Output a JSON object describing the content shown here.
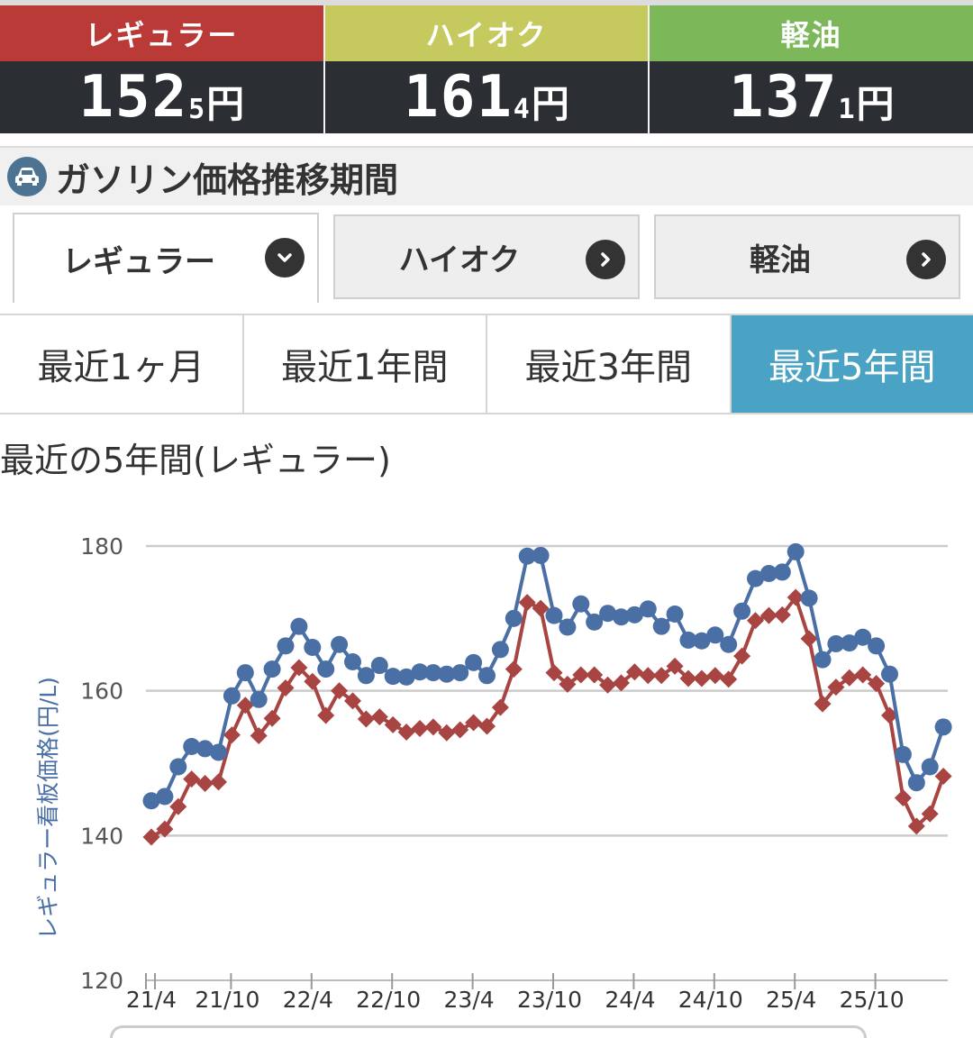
{
  "prices": [
    {
      "label": "レギュラー",
      "int": "152",
      "dec": "5",
      "unit": "円",
      "color": "#b93a37"
    },
    {
      "label": "ハイオク",
      "int": "161",
      "dec": "4",
      "unit": "円",
      "color": "#c6c95e"
    },
    {
      "label": "軽油",
      "int": "137",
      "dec": "1",
      "unit": "円",
      "color": "#7cb85a"
    }
  ],
  "section": {
    "title": "ガソリン価格推移期間",
    "icon": "car-icon"
  },
  "fuel_tabs": [
    {
      "label": "レギュラー",
      "active": true,
      "icon": "chevron-down-icon"
    },
    {
      "label": "ハイオク",
      "active": false,
      "icon": "chevron-right-icon"
    },
    {
      "label": "軽油",
      "active": false,
      "icon": "chevron-right-icon"
    }
  ],
  "period_tabs": [
    {
      "label": "最近1ヶ月",
      "active": false
    },
    {
      "label": "最近1年間",
      "active": false
    },
    {
      "label": "最近3年間",
      "active": false
    },
    {
      "label": "最近5年間",
      "active": true
    }
  ],
  "chart_heading": "最近の5年間(レギュラー)",
  "chart_data": {
    "type": "line",
    "title": "",
    "ylabel": "レギュラー看板価格(円/L)",
    "ylim": [
      120,
      180
    ],
    "yticks": [
      120,
      140,
      160,
      180
    ],
    "grid": true,
    "x_tick_labels": [
      "21/4",
      "21/10",
      "22/4",
      "22/10",
      "23/4",
      "23/10",
      "24/4",
      "24/10",
      "25/4",
      "25/10"
    ],
    "x_tick_month_index": [
      0,
      6,
      12,
      18,
      24,
      30,
      36,
      42,
      48,
      54
    ],
    "series": [
      {
        "color": "#4a6fa5",
        "marker": "circle",
        "values": [
          144.8,
          145.4,
          149.5,
          152.3,
          152.0,
          151.5,
          159.3,
          162.5,
          158.8,
          163.0,
          166.2,
          168.9,
          166.0,
          163.0,
          166.4,
          164.0,
          162.1,
          163.5,
          162.0,
          161.9,
          162.6,
          162.5,
          162.3,
          162.5,
          163.9,
          162.1,
          165.7,
          170.0,
          178.6,
          178.7,
          170.4,
          168.8,
          172.0,
          169.5,
          170.7,
          170.2,
          170.5,
          171.3,
          168.9,
          170.6,
          167.0,
          166.9,
          167.7,
          166.4,
          171.0,
          175.5,
          176.2,
          176.4,
          179.2,
          172.8,
          164.3,
          166.5,
          166.6,
          167.4,
          166.2,
          162.3,
          151.2,
          147.3,
          149.5,
          155.0
        ]
      },
      {
        "color": "#a84442",
        "marker": "diamond",
        "values": [
          139.8,
          140.9,
          144.0,
          147.8,
          147.2,
          147.4,
          153.9,
          158.0,
          153.8,
          156.2,
          160.4,
          163.2,
          161.3,
          156.6,
          160.0,
          158.6,
          156.1,
          156.4,
          155.3,
          154.3,
          154.8,
          155.0,
          154.2,
          154.6,
          155.6,
          155.1,
          157.7,
          163.0,
          172.2,
          171.4,
          162.5,
          160.9,
          162.2,
          162.2,
          160.8,
          161.1,
          162.6,
          162.1,
          162.1,
          163.4,
          161.7,
          161.7,
          162.1,
          161.6,
          164.8,
          169.7,
          170.4,
          170.5,
          172.9,
          167.2,
          158.2,
          160.5,
          161.8,
          162.2,
          161.0,
          156.6,
          145.2,
          141.3,
          143.0,
          148.2
        ]
      }
    ]
  }
}
